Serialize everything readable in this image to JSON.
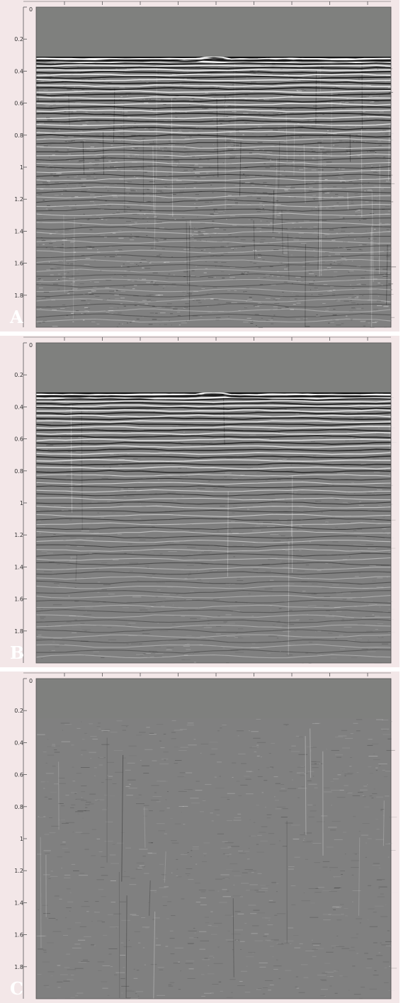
{
  "panels": [
    {
      "id": "panel-a",
      "letter": "A",
      "water_bottom": 0.31,
      "noise": 0.55,
      "reflector_strength": 1.0,
      "diffraction": 0.8
    },
    {
      "id": "panel-b",
      "letter": "B",
      "water_bottom": 0.31,
      "noise": 0.22,
      "reflector_strength": 0.95,
      "diffraction": 0.15
    },
    {
      "id": "panel-c",
      "letter": "C",
      "water_bottom": 0.25,
      "noise": 0.25,
      "reflector_strength": 0.0,
      "diffraction": 0.3
    }
  ],
  "y_axis": {
    "min": 0,
    "max": 2.0,
    "tick_labels": [
      "0",
      "0.2",
      "0.4",
      "0.6",
      "0.8",
      "1",
      "1.2",
      "1.4",
      "1.6",
      "1.8"
    ],
    "tick_values": [
      0,
      0.2,
      0.4,
      0.6,
      0.8,
      1.0,
      1.2,
      1.4,
      1.6,
      1.8
    ]
  },
  "x_axis": {
    "tick_count": 10
  },
  "colors": {
    "panel_background": "#f3e7e8",
    "water_fill": "#7f807e",
    "section_base": "#808080",
    "axis_line": "#555555"
  }
}
